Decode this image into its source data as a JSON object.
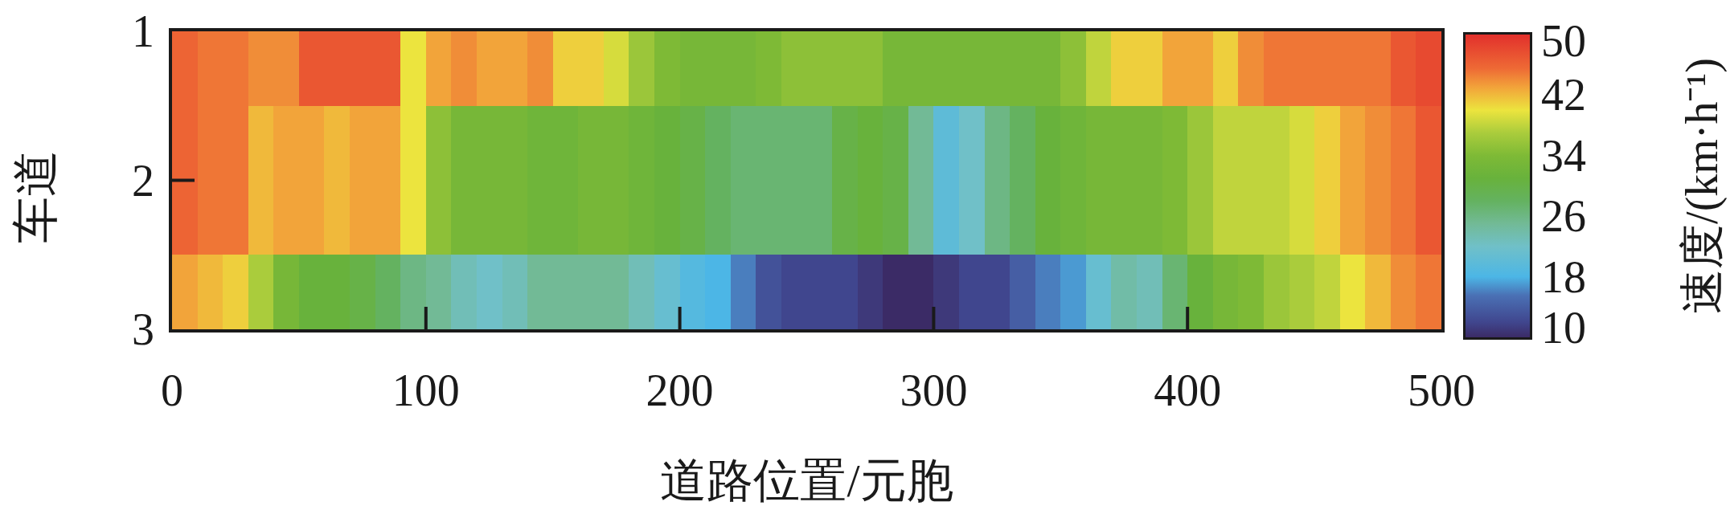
{
  "chart_data": {
    "type": "heatmap",
    "x": [
      5,
      15,
      25,
      35,
      45,
      55,
      65,
      75,
      85,
      95,
      105,
      115,
      125,
      135,
      145,
      155,
      165,
      175,
      185,
      195,
      205,
      215,
      225,
      235,
      245,
      255,
      265,
      275,
      285,
      295,
      305,
      315,
      325,
      335,
      345,
      355,
      365,
      375,
      385,
      395,
      405,
      415,
      425,
      435,
      445,
      455,
      465,
      475,
      485,
      495
    ],
    "y_categories": [
      "1",
      "2",
      "3"
    ],
    "cells": [
      [
        46,
        45,
        45,
        44,
        44,
        47,
        47,
        47,
        47,
        40,
        43,
        44,
        43,
        43,
        44,
        41,
        41,
        39,
        36,
        34,
        33,
        33,
        33,
        34,
        35,
        35,
        35,
        35,
        33,
        33,
        33,
        33,
        33,
        33,
        33,
        35,
        38,
        41,
        41,
        43,
        43,
        41,
        44,
        45,
        45,
        45,
        45,
        45,
        47,
        48
      ],
      [
        46,
        45,
        45,
        42,
        43,
        43,
        42,
        43,
        43,
        40,
        35,
        33,
        33,
        33,
        32,
        32,
        33,
        33,
        32,
        31,
        30,
        28,
        27,
        27,
        27,
        27,
        30,
        31,
        30,
        25,
        20,
        22,
        26,
        28,
        31,
        32,
        33,
        33,
        33,
        34,
        36,
        38,
        38,
        38,
        39,
        41,
        43,
        44,
        45,
        47
      ],
      [
        43,
        42,
        41,
        37,
        33,
        31,
        31,
        30,
        28,
        26,
        25,
        23,
        22,
        23,
        25,
        25,
        25,
        25,
        23,
        21,
        19,
        18,
        16,
        13,
        12,
        12,
        12,
        11,
        10,
        10,
        11,
        12,
        12,
        14,
        16,
        17,
        21,
        24,
        23,
        27,
        31,
        33,
        34,
        36,
        37,
        38,
        40,
        42,
        44,
        45
      ]
    ],
    "xlim": [
      0,
      500
    ],
    "xticks": [
      0,
      100,
      200,
      300,
      400,
      500
    ],
    "xlabel": "道路位置/元胞",
    "ylabel": "车道",
    "clabel": "速度/(km·h⁻¹)",
    "clim": [
      10,
      50
    ],
    "cticks": [
      10,
      18,
      26,
      34,
      42,
      50
    ]
  }
}
